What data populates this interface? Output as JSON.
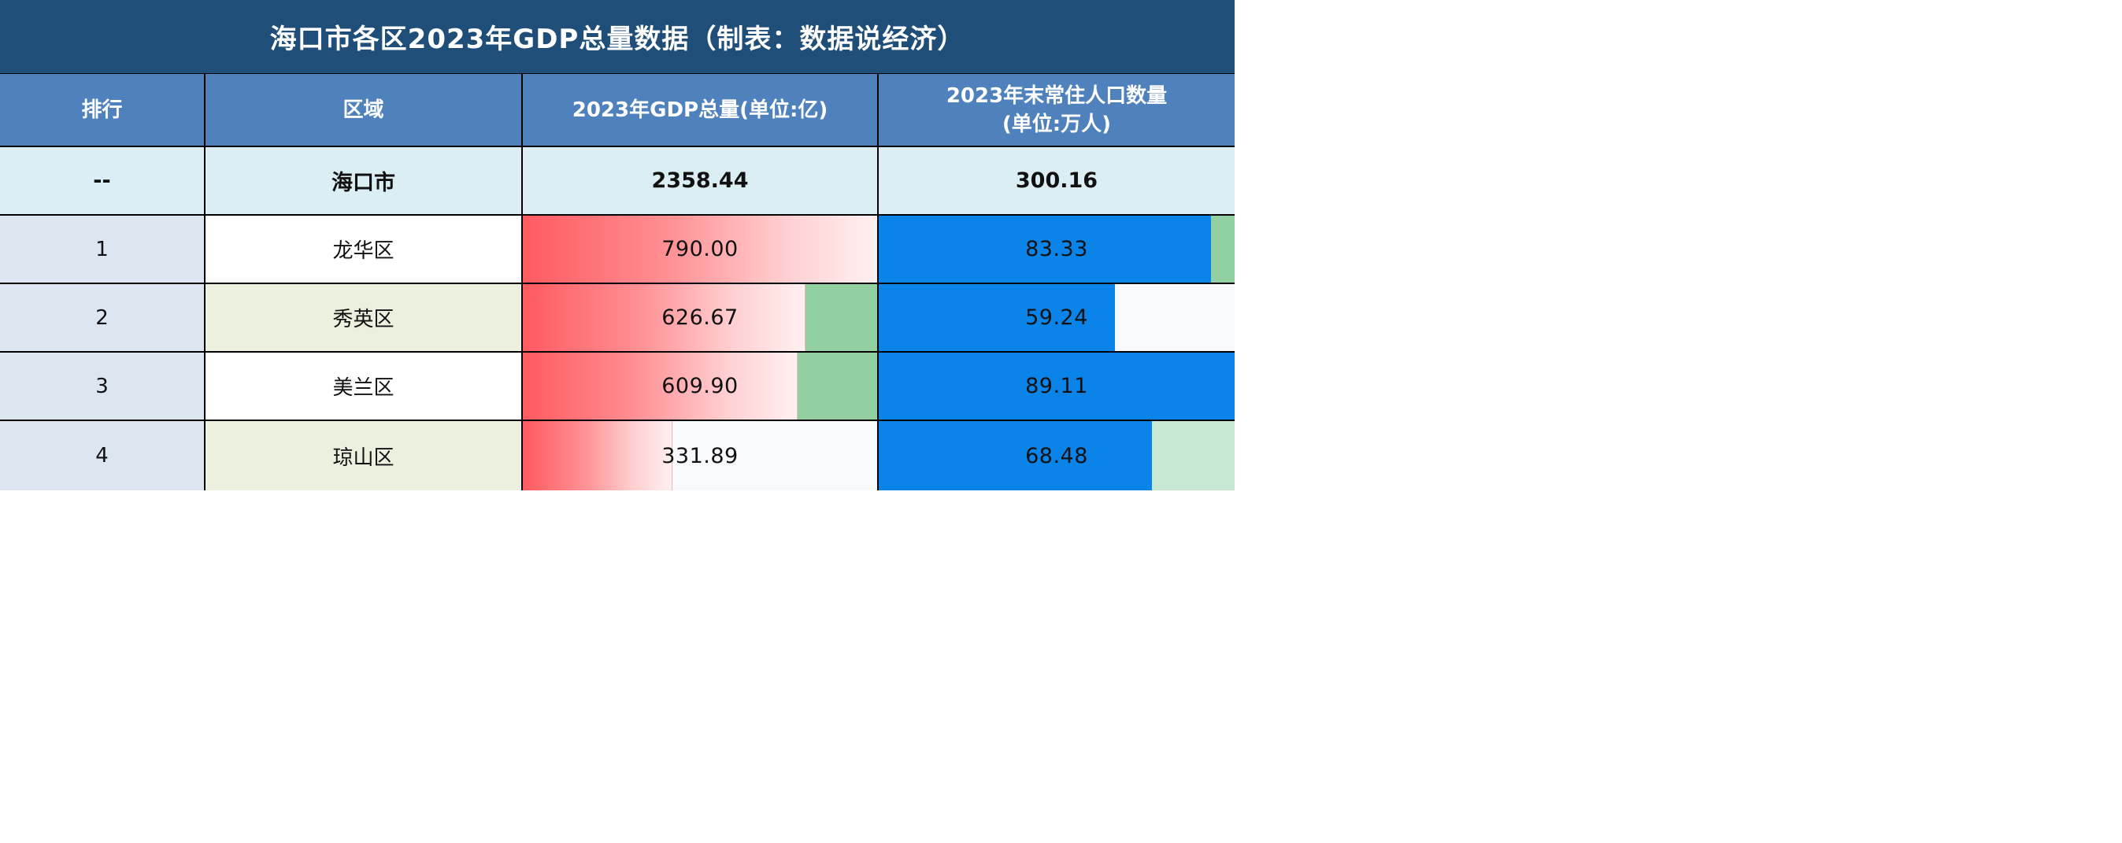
{
  "title": "海口市各区2023年GDP总量数据（制表：数据说经济）",
  "headers": {
    "rank": "排行",
    "district": "区域",
    "gdp": "2023年GDP总量(单位:亿)",
    "pop_line1": "2023年末常住人口数量",
    "pop_line2": "(单位:万人)"
  },
  "summary": {
    "rank": "--",
    "district": "海口市",
    "gdp": "2358.44",
    "pop": "300.16"
  },
  "rows": [
    {
      "rank": "1",
      "district": "龙华区",
      "gdp": "790.00",
      "pop": "83.33"
    },
    {
      "rank": "2",
      "district": "秀英区",
      "gdp": "626.67",
      "pop": "59.24"
    },
    {
      "rank": "3",
      "district": "美兰区",
      "gdp": "609.90",
      "pop": "89.11"
    },
    {
      "rank": "4",
      "district": "琼山区",
      "gdp": "331.89",
      "pop": "68.48"
    }
  ],
  "colors": {
    "title_bg": "#1f4e79",
    "header_bg": "#4f81bd",
    "summary_bg": "#daeef3",
    "gdp_bar": "#ff5a5f",
    "pop_bar": "#0a84e8",
    "bar_remainder": "#92d0a1"
  }
}
